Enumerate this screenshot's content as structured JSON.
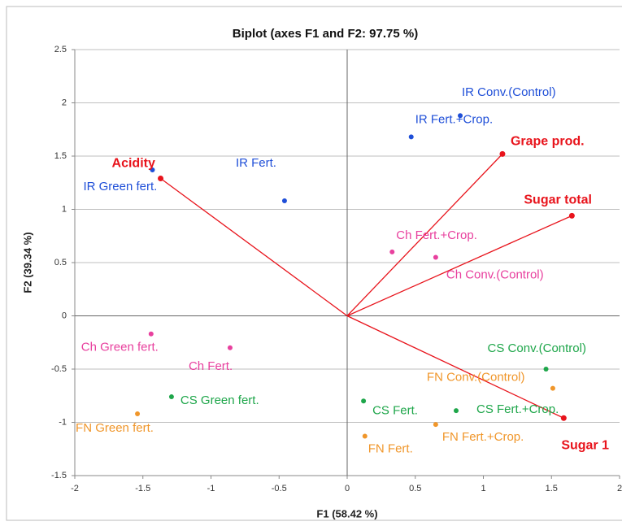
{
  "chart_data": {
    "type": "scatter",
    "title": "Biplot (axes F1 and F2: 97.75 %)",
    "x_label": "F1 (58.42 %)",
    "y_label": "F2 (39.34 %)",
    "xlim": [
      -2,
      2
    ],
    "ylim": [
      -1.5,
      2.5
    ],
    "xticks": [
      -2,
      -1.5,
      -1,
      -0.5,
      0,
      0.5,
      1,
      1.5,
      2
    ],
    "yticks": [
      -1.5,
      -1,
      -0.5,
      0,
      0.5,
      1,
      1.5,
      2,
      2.5
    ],
    "grid": true,
    "points": [
      {
        "label": "IR Conv.(Control)",
        "x": 0.83,
        "y": 1.88,
        "color": "#1f4fd8"
      },
      {
        "label": "IR Fert.+Crop.",
        "x": 0.47,
        "y": 1.68,
        "color": "#1f4fd8"
      },
      {
        "label": "IR Green fert.",
        "x": -1.43,
        "y": 1.37,
        "color": "#1f4fd8"
      },
      {
        "label": "IR Fert.",
        "x": -0.46,
        "y": 1.08,
        "color": "#1f4fd8"
      },
      {
        "label": "Ch Fert.+Crop.",
        "x": 0.33,
        "y": 0.6,
        "color": "#e8409e"
      },
      {
        "label": "Ch Conv.(Control)",
        "x": 0.65,
        "y": 0.55,
        "color": "#e8409e"
      },
      {
        "label": "Ch Green fert.",
        "x": -1.44,
        "y": -0.17,
        "color": "#e8409e"
      },
      {
        "label": "Ch Fert.",
        "x": -0.86,
        "y": -0.3,
        "color": "#e8409e"
      },
      {
        "label": "CS Conv.(Control)",
        "x": 1.46,
        "y": -0.5,
        "color": "#1ea64a"
      },
      {
        "label": "CS Green fert.",
        "x": -1.29,
        "y": -0.76,
        "color": "#1ea64a"
      },
      {
        "label": "CS Fert.",
        "x": 0.12,
        "y": -0.8,
        "color": "#1ea64a"
      },
      {
        "label": "CS Fert.+Crop.",
        "x": 0.8,
        "y": -0.89,
        "color": "#1ea64a"
      },
      {
        "label": "FN Conv.(Control)",
        "x": 1.51,
        "y": -0.68,
        "color": "#f0962a"
      },
      {
        "label": "FN Green fert.",
        "x": -1.54,
        "y": -0.92,
        "color": "#f0962a"
      },
      {
        "label": "FN Fert.",
        "x": 0.13,
        "y": -1.13,
        "color": "#f0962a"
      },
      {
        "label": "FN Fert.+Crop.",
        "x": 0.65,
        "y": -1.02,
        "color": "#f0962a"
      }
    ],
    "vectors_color": "#e8141c",
    "vectors": [
      {
        "label": "Acidity",
        "x": -1.37,
        "y": 1.29
      },
      {
        "label": "Grape prod.",
        "x": 1.14,
        "y": 1.52
      },
      {
        "label": "Sugar total",
        "x": 1.65,
        "y": 0.94
      },
      {
        "label": "Sugar 1",
        "x": 1.59,
        "y": -0.96
      }
    ]
  }
}
